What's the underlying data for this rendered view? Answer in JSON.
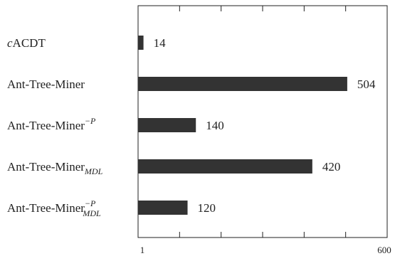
{
  "chart_data": {
    "type": "bar",
    "orientation": "horizontal",
    "title": "",
    "xlabel": "",
    "ylabel": "",
    "categories": [
      {
        "text": "cACDT",
        "italic_prefix": "c",
        "main": "ACDT",
        "sup": "",
        "sub": ""
      },
      {
        "text": "Ant-Tree-Miner",
        "italic_prefix": "",
        "main": "Ant-Tree-Miner",
        "sup": "",
        "sub": ""
      },
      {
        "text": "Ant-Tree-Miner−P",
        "italic_prefix": "",
        "main": "Ant-Tree-Miner",
        "sup": "−P",
        "sub": ""
      },
      {
        "text": "Ant-Tree-MinerMDL",
        "italic_prefix": "",
        "main": "Ant-Tree-Miner",
        "sup": "",
        "sub": "MDL"
      },
      {
        "text": "Ant-Tree-Miner−P MDL",
        "italic_prefix": "",
        "main": "Ant-Tree-Miner",
        "sup": "−P",
        "sub": "MDL"
      }
    ],
    "values": [
      14,
      504,
      140,
      420,
      120
    ],
    "value_labels": [
      "14",
      "504",
      "140",
      "420",
      "120"
    ],
    "xlim": [
      1,
      600
    ],
    "x_tick_labels": [
      "1",
      "600"
    ],
    "grid": false,
    "bar_color": "#333333"
  }
}
